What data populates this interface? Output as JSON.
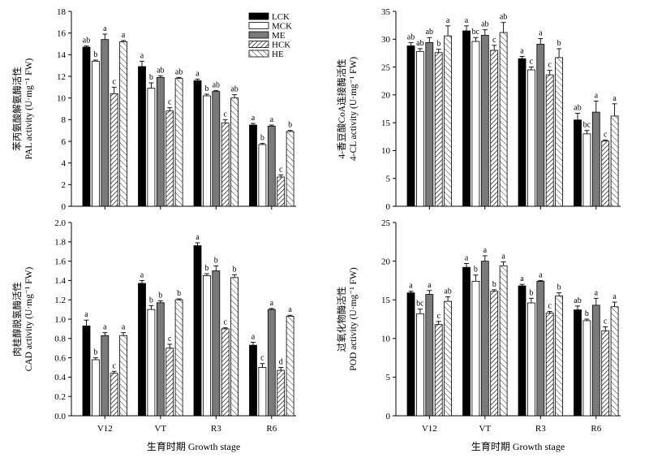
{
  "chart_data": [
    {
      "type": "bar",
      "panel": "top-left",
      "categories": [
        "V12",
        "VT",
        "R3",
        "R6"
      ],
      "ylabel_cn": "苯丙氨酸解氨酶活性",
      "ylabel_en": "PAL activity (U·mg⁻¹ FW)",
      "xlabel": "",
      "ylim": [
        0,
        18
      ],
      "yticks": [
        0,
        2,
        4,
        6,
        8,
        10,
        12,
        14,
        16,
        18
      ],
      "show_xticklabels": false,
      "legend": "top-right",
      "series": [
        {
          "name": "LCK",
          "values": [
            14.7,
            12.9,
            11.6,
            7.5
          ],
          "errors": [
            0.1,
            0.5,
            0.15,
            0.15
          ],
          "letters": [
            "ab",
            "a",
            "a",
            "a"
          ]
        },
        {
          "name": "MCK",
          "values": [
            13.4,
            10.9,
            10.2,
            5.7
          ],
          "errors": [
            0.1,
            0.5,
            0.15,
            0.1
          ],
          "letters": [
            "b",
            "b",
            "b",
            "b"
          ]
        },
        {
          "name": "ME",
          "values": [
            15.4,
            11.9,
            10.6,
            7.4
          ],
          "errors": [
            0.5,
            0.15,
            0.1,
            0.1
          ],
          "letters": [
            "a",
            "ab",
            "ab",
            "a"
          ]
        },
        {
          "name": "HCK",
          "values": [
            10.4,
            8.8,
            7.7,
            2.7
          ],
          "errors": [
            0.6,
            0.3,
            0.3,
            0.2
          ],
          "letters": [
            "c",
            "c",
            "c",
            "c"
          ]
        },
        {
          "name": "HE",
          "values": [
            15.2,
            11.8,
            10.0,
            6.9
          ],
          "errors": [
            0.1,
            0.1,
            0.3,
            0.1
          ],
          "letters": [
            "a",
            "ab",
            "ab",
            "b"
          ]
        }
      ]
    },
    {
      "type": "bar",
      "panel": "top-right",
      "categories": [
        "V12",
        "VT",
        "R3",
        "R6"
      ],
      "ylabel_cn": "4-香豆酸CoA连接酶活性",
      "ylabel_en": "4-CL activity (U·mg⁻¹ FW)",
      "xlabel": "",
      "ylim": [
        0,
        35
      ],
      "yticks": [
        0,
        5,
        10,
        15,
        20,
        25,
        30,
        35
      ],
      "show_xticklabels": false,
      "series": [
        {
          "name": "LCK",
          "values": [
            28.8,
            31.5,
            26.5,
            15.5
          ],
          "errors": [
            0.6,
            0.9,
            0.4,
            1.2
          ],
          "letters": [
            "ab",
            "a",
            "a",
            "ab"
          ]
        },
        {
          "name": "MCK",
          "values": [
            27.8,
            29.6,
            24.5,
            13.0
          ],
          "errors": [
            0.5,
            0.7,
            0.5,
            0.6
          ],
          "letters": [
            "ab",
            "bc",
            "c",
            "bc"
          ]
        },
        {
          "name": "ME",
          "values": [
            29.4,
            30.7,
            29.1,
            16.9
          ],
          "errors": [
            0.9,
            1.0,
            1.0,
            2.0
          ],
          "letters": [
            "ab",
            "ab",
            "a",
            "a"
          ]
        },
        {
          "name": "HCK",
          "values": [
            27.6,
            28.0,
            23.6,
            11.7
          ],
          "errors": [
            0.6,
            0.9,
            0.8,
            0.2
          ],
          "letters": [
            "b",
            "c",
            "c",
            "c"
          ]
        },
        {
          "name": "HE",
          "values": [
            30.6,
            31.2,
            26.7,
            16.2
          ],
          "errors": [
            1.8,
            1.8,
            1.6,
            2.2
          ],
          "letters": [
            "a",
            "ab",
            "b",
            "a"
          ]
        }
      ]
    },
    {
      "type": "bar",
      "panel": "bottom-left",
      "categories": [
        "V12",
        "VT",
        "R3",
        "R6"
      ],
      "ylabel_cn": "肉桂醇脱氢酶活性",
      "ylabel_en": "CAD activity (U·mg⁻¹ FW)",
      "xlabel": "生育时期 Growth stage",
      "ylim": [
        0,
        2.0
      ],
      "yticks": [
        0.0,
        0.2,
        0.4,
        0.6,
        0.8,
        1.0,
        1.2,
        1.4,
        1.6,
        1.8,
        2.0
      ],
      "show_xticklabels": true,
      "series": [
        {
          "name": "LCK",
          "values": [
            0.93,
            1.37,
            1.76,
            0.73
          ],
          "errors": [
            0.06,
            0.03,
            0.03,
            0.03
          ],
          "letters": [
            "a",
            "a",
            "a",
            "a"
          ]
        },
        {
          "name": "MCK",
          "values": [
            0.58,
            1.1,
            1.45,
            0.5
          ],
          "errors": [
            0.02,
            0.04,
            0.02,
            0.04
          ],
          "letters": [
            "b",
            "b",
            "b",
            "c"
          ]
        },
        {
          "name": "ME",
          "values": [
            0.83,
            1.17,
            1.5,
            1.1
          ],
          "errors": [
            0.03,
            0.02,
            0.05,
            0.01
          ],
          "letters": [
            "a",
            "b",
            "b",
            "a"
          ]
        },
        {
          "name": "HCK",
          "values": [
            0.44,
            0.7,
            0.9,
            0.47
          ],
          "errors": [
            0.02,
            0.04,
            0.01,
            0.03
          ],
          "letters": [
            "c",
            "c",
            "c",
            "d"
          ]
        },
        {
          "name": "HE",
          "values": [
            0.83,
            1.2,
            1.43,
            1.03
          ],
          "errors": [
            0.03,
            0.01,
            0.03,
            0.01
          ],
          "letters": [
            "a",
            "b",
            "b",
            "a"
          ]
        }
      ]
    },
    {
      "type": "bar",
      "panel": "bottom-right",
      "categories": [
        "V12",
        "VT",
        "R3",
        "R6"
      ],
      "ylabel_cn": "过氧化物酶活性",
      "ylabel_en": "POD activity (U·mg⁻¹ FW)",
      "xlabel": "生育时期 Growth stage",
      "ylim": [
        0,
        25
      ],
      "yticks": [
        0,
        5,
        10,
        15,
        20,
        25
      ],
      "show_xticklabels": true,
      "series": [
        {
          "name": "LCK",
          "values": [
            15.9,
            19.2,
            16.8,
            13.7
          ],
          "errors": [
            0.2,
            0.5,
            0.2,
            0.5
          ],
          "letters": [
            "a",
            "a",
            "a",
            "ab"
          ]
        },
        {
          "name": "MCK",
          "values": [
            13.2,
            17.4,
            14.6,
            12.3
          ],
          "errors": [
            0.6,
            0.8,
            0.6,
            0.2
          ],
          "letters": [
            "bc",
            "b",
            "b",
            "b"
          ]
        },
        {
          "name": "ME",
          "values": [
            15.7,
            20.0,
            17.4,
            14.3
          ],
          "errors": [
            0.5,
            0.7,
            0.1,
            0.9
          ],
          "letters": [
            "a",
            "a",
            "a",
            "a"
          ]
        },
        {
          "name": "HCK",
          "values": [
            11.8,
            16.1,
            13.3,
            11.0
          ],
          "errors": [
            0.4,
            0.2,
            0.2,
            0.5
          ],
          "letters": [
            "c",
            "b",
            "c",
            "c"
          ]
        },
        {
          "name": "HE",
          "values": [
            14.8,
            19.4,
            15.5,
            14.1
          ],
          "errors": [
            0.6,
            0.5,
            0.4,
            0.6
          ],
          "letters": [
            "ab",
            "a",
            "b",
            "a"
          ]
        }
      ]
    }
  ]
}
